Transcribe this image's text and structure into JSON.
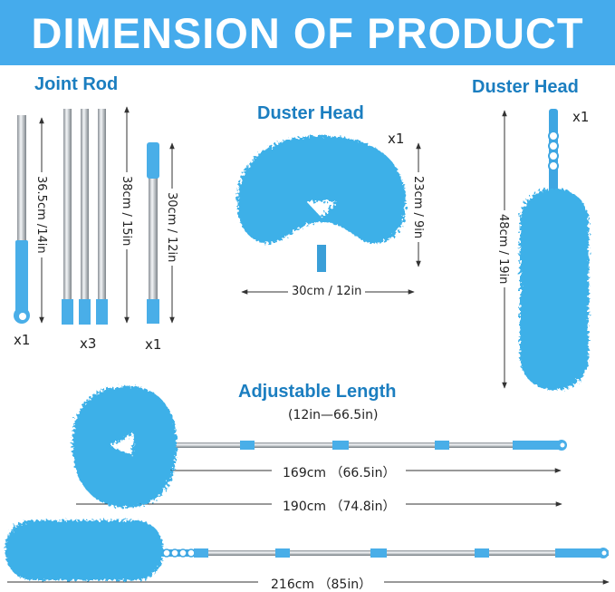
{
  "title": "DIMENSION OF PRODUCT",
  "colors": {
    "banner": "#45abec",
    "heading": "#1b7ec0",
    "duster": "#3cb0e8",
    "rod": "#c8ccd0"
  },
  "joint_rod": {
    "heading": "Joint Rod",
    "rods": [
      {
        "length": "36.5cm /14in",
        "qty": "x1"
      },
      {
        "length": "38cm / 15in",
        "qty": "x3"
      },
      {
        "length": "30cm / 12in",
        "qty": "x1"
      }
    ]
  },
  "ring_duster": {
    "heading": "Duster Head",
    "qty": "x1",
    "height": "23cm / 9in",
    "width": "30cm / 12in"
  },
  "long_duster": {
    "heading": "Duster Head",
    "qty": "x1",
    "length": "48cm / 19in"
  },
  "adjustable": {
    "heading": "Adjustable Length",
    "range": "(12in—66.5in)",
    "lengths": [
      "169cm （66.5in）",
      "190cm （74.8in）",
      "216cm （85in）"
    ]
  }
}
